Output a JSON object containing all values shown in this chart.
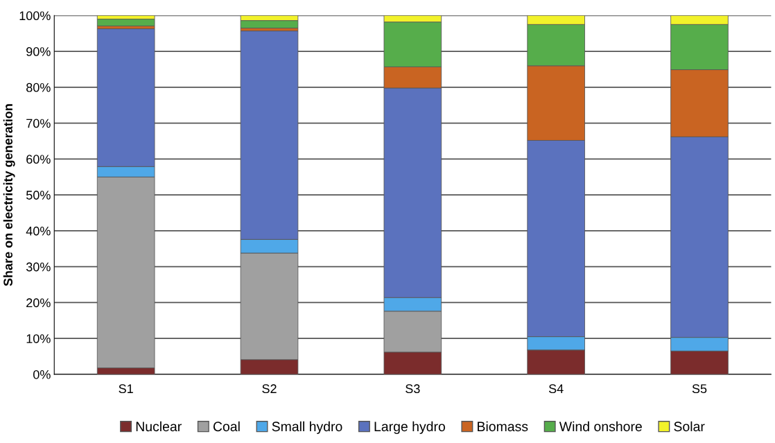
{
  "chart_data": {
    "type": "bar",
    "stacked": true,
    "ylabel": "Share on electricity generation",
    "categories": [
      "S1",
      "S2",
      "S3",
      "S4",
      "S5"
    ],
    "series": [
      {
        "name": "Nuclear",
        "color": "#7b2c2c",
        "values": [
          1.8,
          4.1,
          6.2,
          6.8,
          6.5
        ]
      },
      {
        "name": "Coal",
        "color": "#a0a0a0",
        "values": [
          53.2,
          29.7,
          11.4,
          0,
          0
        ]
      },
      {
        "name": "Small hydro",
        "color": "#4fa8e8",
        "values": [
          2.9,
          3.8,
          3.8,
          3.7,
          3.8
        ]
      },
      {
        "name": "Large hydro",
        "color": "#5b72be",
        "values": [
          38.4,
          58.1,
          58.4,
          54.7,
          55.9
        ]
      },
      {
        "name": "Biomass",
        "color": "#c96422",
        "values": [
          0.8,
          0.8,
          5.9,
          20.8,
          18.7
        ]
      },
      {
        "name": "Wind onshore",
        "color": "#56ad4b",
        "values": [
          1.9,
          2.1,
          12.5,
          11.5,
          12.6
        ]
      },
      {
        "name": "Solar",
        "color": "#f2f22a",
        "values": [
          1.0,
          1.4,
          1.8,
          2.5,
          2.5
        ]
      }
    ],
    "ylim": [
      0,
      100
    ],
    "yticks": [
      {
        "value": 0,
        "label": "0%"
      },
      {
        "value": 10,
        "label": "10%"
      },
      {
        "value": 20,
        "label": "20%"
      },
      {
        "value": 30,
        "label": "30%"
      },
      {
        "value": 40,
        "label": "40%"
      },
      {
        "value": 50,
        "label": "50%"
      },
      {
        "value": 60,
        "label": "60%"
      },
      {
        "value": 70,
        "label": "70%"
      },
      {
        "value": 80,
        "label": "80%"
      },
      {
        "value": 90,
        "label": "90%"
      },
      {
        "value": 100,
        "label": "100%"
      }
    ],
    "grid": "y",
    "legend": "bottom"
  }
}
